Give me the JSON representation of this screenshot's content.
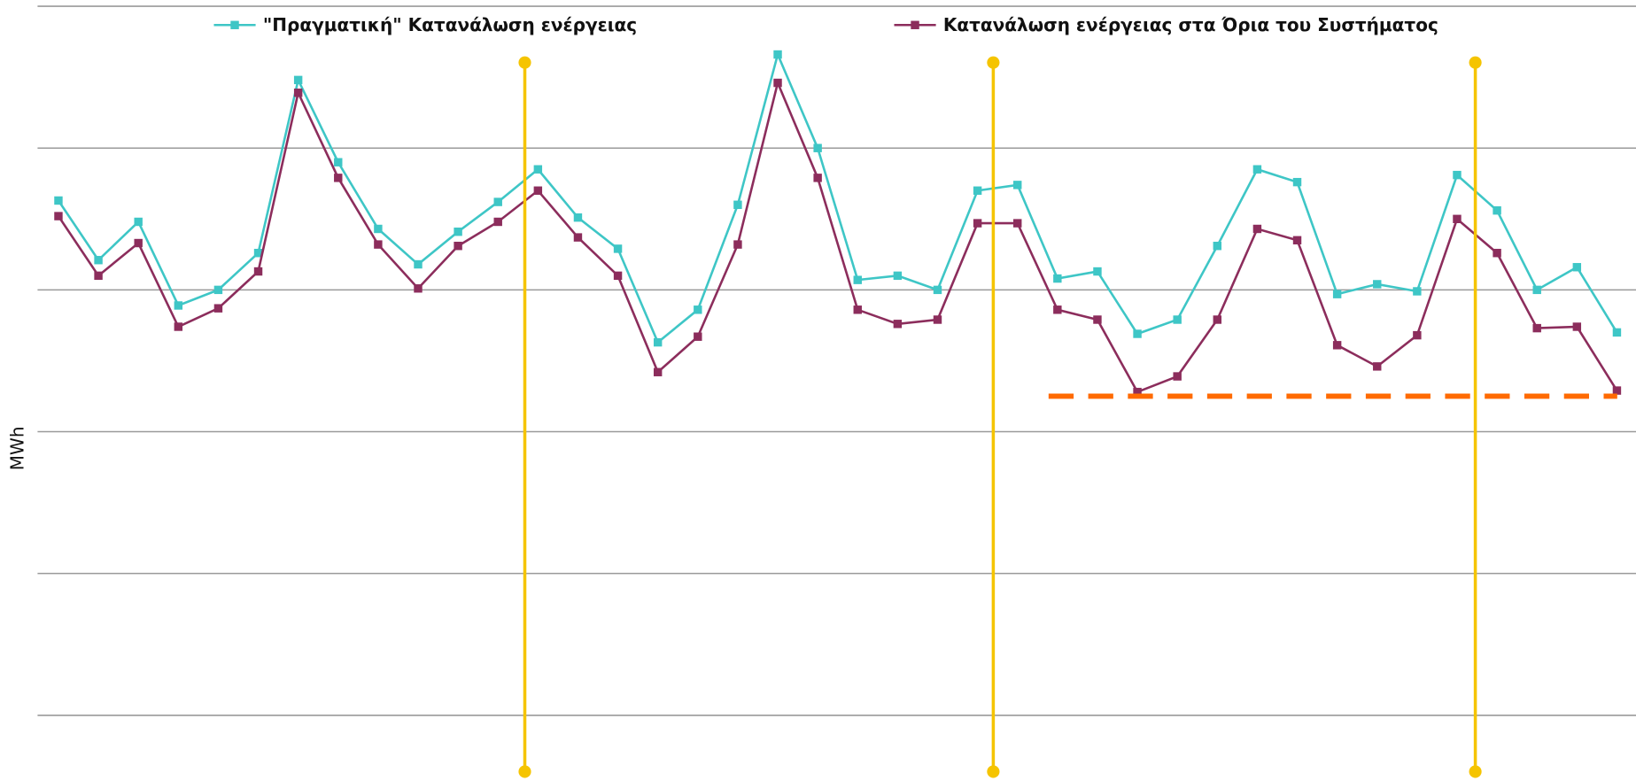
{
  "chart_data": {
    "type": "line",
    "y_label": "MWh",
    "categories": [
      null,
      null,
      null,
      null,
      null,
      null,
      null,
      null,
      null,
      null,
      null,
      null,
      null,
      null,
      null,
      null,
      null,
      null,
      null,
      null,
      null,
      null,
      null,
      null,
      null,
      null,
      null,
      null,
      null,
      null,
      null,
      null,
      null,
      null,
      null,
      null,
      null,
      null,
      null,
      null
    ],
    "series": [
      {
        "name": "\"Πραγματική\" Κατανάλωση ενέργειας",
        "color": "#3ec6c6",
        "values": [
          3.63,
          3.21,
          3.48,
          2.89,
          3.0,
          3.26,
          4.48,
          3.9,
          3.43,
          3.18,
          3.41,
          3.62,
          3.85,
          3.51,
          3.29,
          2.63,
          2.86,
          3.6,
          4.66,
          4.0,
          3.07,
          3.1,
          3.0,
          3.7,
          3.74,
          3.08,
          3.13,
          2.69,
          2.79,
          3.31,
          3.85,
          3.76,
          2.97,
          3.04,
          2.99,
          3.81,
          3.56,
          3.0,
          3.16,
          2.7
        ]
      },
      {
        "name": "Κατανάλωση ενέργειας στα Όρια του Συστήματος",
        "color": "#8c2d5c",
        "values": [
          3.52,
          3.1,
          3.33,
          2.74,
          2.87,
          3.13,
          4.39,
          3.79,
          3.32,
          3.01,
          3.31,
          3.48,
          3.7,
          3.37,
          3.1,
          2.42,
          2.67,
          3.32,
          4.46,
          3.79,
          2.86,
          2.76,
          2.79,
          3.47,
          3.47,
          2.86,
          2.79,
          2.28,
          2.39,
          2.79,
          3.43,
          3.35,
          2.61,
          2.46,
          2.68,
          3.5,
          3.26,
          2.73,
          2.74,
          2.29
        ]
      }
    ],
    "ylim": [
      0,
      5
    ],
    "yticks": [
      0,
      1,
      2,
      3,
      4,
      5
    ],
    "grid": true,
    "legend": "top"
  }
}
